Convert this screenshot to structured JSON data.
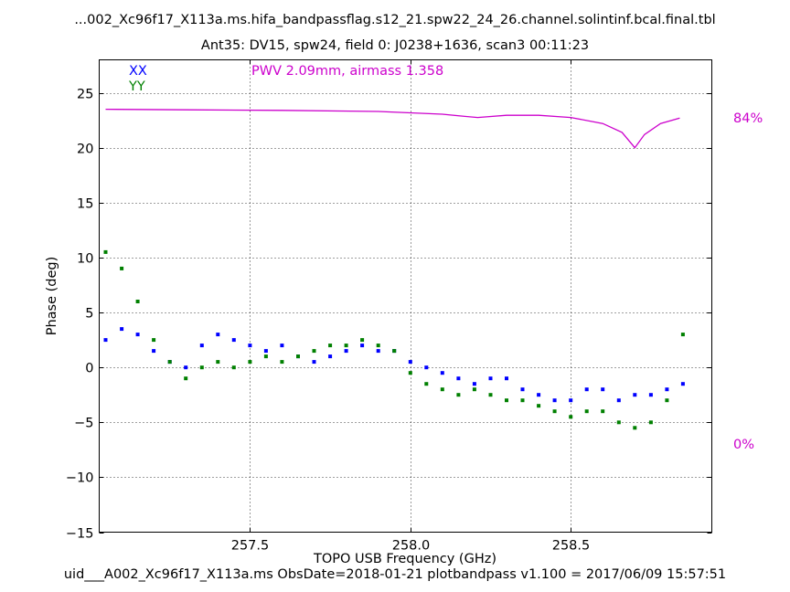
{
  "chart_data": {
    "type": "scatter",
    "title": "...002_Xc96f17_X113a.ms.hifa_bandpassflag.s12_21.spw22_24_26.channel.solintinf.bcal.final.tbl",
    "subtitle": "Ant35: DV15,  spw24,  field 0: J0238+1636,  scan3  00:11:23",
    "xlabel": "TOPO USB Frequency (GHz)",
    "ylabel": "Phase (deg)",
    "footer": "uid___A002_Xc96f17_X113a.ms  ObsDate=2018-01-21   plotbandpass v1.100 = 2017/06/09 15:57:51",
    "xlim": [
      257.03,
      258.94
    ],
    "ylim": [
      -15,
      28
    ],
    "xticks": [
      257.5,
      258.0,
      258.5
    ],
    "xtick_labels": [
      "257.5",
      "258.0",
      "258.5"
    ],
    "yticks": [
      -15,
      -10,
      -5,
      0,
      5,
      10,
      15,
      20,
      25
    ],
    "ytick_labels": [
      "−15",
      "−10",
      "−5",
      "0",
      "5",
      "10",
      "15",
      "20",
      "25"
    ],
    "grid": true,
    "legend_position": "top-left",
    "annotation": "PWV 2.09mm, airmass 1.358",
    "right_axis_labels": [
      "84%",
      "0%"
    ],
    "colors": {
      "XX": "#0000ff",
      "YY": "#008000",
      "atmosphere": "#cc00cc"
    },
    "series": [
      {
        "name": "XX",
        "x": [
          257.05,
          257.1,
          257.15,
          257.2,
          257.25,
          257.3,
          257.35,
          257.4,
          257.45,
          257.5,
          257.55,
          257.6,
          257.65,
          257.7,
          257.75,
          257.8,
          257.85,
          257.9,
          257.95,
          258.0,
          258.05,
          258.1,
          258.15,
          258.2,
          258.25,
          258.3,
          258.35,
          258.4,
          258.45,
          258.5,
          258.55,
          258.6,
          258.65,
          258.7,
          258.75,
          258.8,
          258.85
        ],
        "y": [
          2.5,
          3.5,
          3.0,
          1.5,
          0.5,
          0.0,
          2.0,
          3.0,
          2.5,
          2.0,
          1.5,
          2.0,
          1.0,
          0.5,
          1.0,
          1.5,
          2.0,
          1.5,
          1.5,
          0.5,
          0.0,
          -0.5,
          -1.0,
          -1.5,
          -1.0,
          -1.0,
          -2.0,
          -2.5,
          -3.0,
          -3.0,
          -2.0,
          -2.0,
          -3.0,
          -2.5,
          -2.5,
          -2.0,
          -1.5
        ]
      },
      {
        "name": "YY",
        "x": [
          257.05,
          257.1,
          257.15,
          257.2,
          257.25,
          257.3,
          257.35,
          257.4,
          257.45,
          257.5,
          257.55,
          257.6,
          257.65,
          257.7,
          257.75,
          257.8,
          257.85,
          257.9,
          257.95,
          258.0,
          258.05,
          258.1,
          258.15,
          258.2,
          258.25,
          258.3,
          258.35,
          258.4,
          258.45,
          258.5,
          258.55,
          258.6,
          258.65,
          258.7,
          258.75,
          258.8,
          258.85
        ],
        "y": [
          10.5,
          9.0,
          6.0,
          2.5,
          0.5,
          -1.0,
          0.0,
          0.5,
          0.0,
          0.5,
          1.0,
          0.5,
          1.0,
          1.5,
          2.0,
          2.0,
          2.5,
          2.0,
          1.5,
          -0.5,
          -1.5,
          -2.0,
          -2.5,
          -2.0,
          -2.5,
          -3.0,
          -3.0,
          -3.5,
          -4.0,
          -4.5,
          -4.0,
          -4.0,
          -5.0,
          -5.5,
          -5.0,
          -3.0,
          3.0
        ]
      },
      {
        "name": "atmosphere",
        "x": [
          257.05,
          257.3,
          257.6,
          257.9,
          258.1,
          258.17,
          258.21,
          258.3,
          258.4,
          258.5,
          258.6,
          258.66,
          258.7,
          258.73,
          258.78,
          258.84
        ],
        "y": [
          23.5,
          23.45,
          23.4,
          23.3,
          23.05,
          22.85,
          22.75,
          22.95,
          22.95,
          22.75,
          22.2,
          21.4,
          20.0,
          21.2,
          22.2,
          22.7
        ]
      }
    ]
  }
}
